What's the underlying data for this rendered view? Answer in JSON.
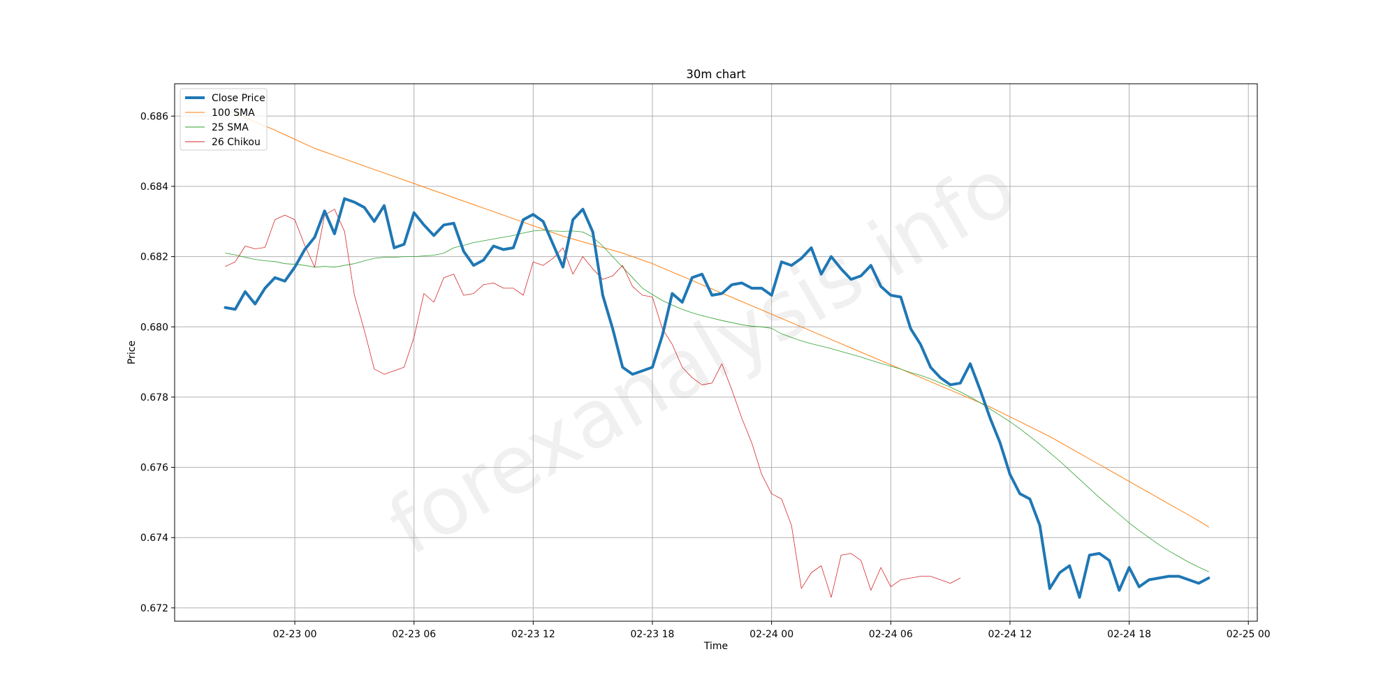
{
  "chart_data": {
    "type": "line",
    "title": "30m chart",
    "xlabel": "Time",
    "ylabel": "Price",
    "watermark": "forexanalysis.info",
    "grid": true,
    "legend_position": "top-left",
    "x_ticks": [
      "02-23 00",
      "02-23 06",
      "02-23 12",
      "02-23 18",
      "02-24 00",
      "02-24 06",
      "02-24 12",
      "02-24 18",
      "02-25 00"
    ],
    "y_ticks": [
      "0.672",
      "0.674",
      "0.676",
      "0.678",
      "0.680",
      "0.682",
      "0.684",
      "0.686"
    ],
    "xlim": [
      "2024-02-22 17:57",
      "2024-02-25 00:27"
    ],
    "ylim": [
      0.67162,
      0.68692
    ],
    "x_start": "2024-02-22 20:30",
    "x_step_minutes": 30,
    "series": [
      {
        "name": "Close Price",
        "color": "#1f77b4",
        "width": 4,
        "values": [
          0.68055,
          0.6805,
          0.681,
          0.68065,
          0.6811,
          0.6814,
          0.6813,
          0.6817,
          0.6822,
          0.68255,
          0.6833,
          0.68265,
          0.68365,
          0.68355,
          0.6834,
          0.683,
          0.68345,
          0.68225,
          0.68235,
          0.68325,
          0.6829,
          0.6826,
          0.6829,
          0.68295,
          0.68215,
          0.68175,
          0.6819,
          0.6823,
          0.6822,
          0.68225,
          0.68305,
          0.6832,
          0.683,
          0.68235,
          0.6817,
          0.68305,
          0.68335,
          0.6827,
          0.6809,
          0.67995,
          0.67885,
          0.67865,
          0.67875,
          0.67885,
          0.67975,
          0.68095,
          0.6807,
          0.6814,
          0.6815,
          0.6809,
          0.68095,
          0.6812,
          0.68125,
          0.6811,
          0.6811,
          0.6809,
          0.68185,
          0.68175,
          0.68195,
          0.68225,
          0.6815,
          0.682,
          0.68165,
          0.68135,
          0.68145,
          0.68175,
          0.68115,
          0.6809,
          0.68085,
          0.67995,
          0.6795,
          0.67885,
          0.67855,
          0.67835,
          0.6784,
          0.67895,
          0.6782,
          0.6774,
          0.6767,
          0.6758,
          0.67525,
          0.6751,
          0.67435,
          0.67255,
          0.673,
          0.6732,
          0.6723,
          0.6735,
          0.67355,
          0.67335,
          0.6725,
          0.67315,
          0.6726,
          0.6728,
          0.67285,
          0.6729,
          0.6729,
          0.6728,
          0.6727,
          0.67285
        ]
      },
      {
        "name": "100 SMA",
        "color": "#ff7f0e",
        "width": 1,
        "values": [
          0.6862,
          0.68608,
          0.68596,
          0.68584,
          0.68572,
          0.6856,
          0.68547,
          0.68534,
          0.68521,
          0.68508,
          0.68498,
          0.68488,
          0.68478,
          0.68468,
          0.68458,
          0.68448,
          0.68438,
          0.68428,
          0.68418,
          0.68408,
          0.68398,
          0.68388,
          0.68378,
          0.68368,
          0.68358,
          0.68348,
          0.68338,
          0.68328,
          0.68318,
          0.68308,
          0.68298,
          0.68288,
          0.68278,
          0.68268,
          0.68258,
          0.6825,
          0.68242,
          0.68234,
          0.68226,
          0.68218,
          0.6821,
          0.682,
          0.6819,
          0.6818,
          0.68168,
          0.68156,
          0.68144,
          0.68132,
          0.6812,
          0.68108,
          0.68096,
          0.68084,
          0.68072,
          0.6806,
          0.68048,
          0.68036,
          0.68024,
          0.68012,
          0.68,
          0.67988,
          0.67976,
          0.67964,
          0.67952,
          0.6794,
          0.67928,
          0.67916,
          0.67904,
          0.67892,
          0.6788,
          0.67868,
          0.67856,
          0.67844,
          0.67832,
          0.6782,
          0.67808,
          0.67796,
          0.67784,
          0.67772,
          0.67758,
          0.67744,
          0.6773,
          0.67716,
          0.67702,
          0.67688,
          0.67672,
          0.67656,
          0.6764,
          0.67624,
          0.67608,
          0.67592,
          0.67576,
          0.6756,
          0.67544,
          0.67528,
          0.67512,
          0.67496,
          0.6748,
          0.67464,
          0.67448,
          0.6743
        ]
      },
      {
        "name": "25 SMA",
        "color": "#2ca02c",
        "width": 0.8,
        "values": [
          0.6821,
          0.68205,
          0.68198,
          0.68192,
          0.68188,
          0.68186,
          0.6818,
          0.68178,
          0.68175,
          0.6817,
          0.68172,
          0.6817,
          0.68175,
          0.6818,
          0.68188,
          0.68195,
          0.68198,
          0.68198,
          0.682,
          0.682,
          0.68202,
          0.68204,
          0.6821,
          0.68225,
          0.68232,
          0.6824,
          0.68245,
          0.6825,
          0.68255,
          0.6826,
          0.68267,
          0.68273,
          0.68275,
          0.68273,
          0.68272,
          0.68273,
          0.6827,
          0.68255,
          0.6823,
          0.682,
          0.6817,
          0.6814,
          0.6811,
          0.68092,
          0.68075,
          0.68062,
          0.6805,
          0.6804,
          0.68032,
          0.68025,
          0.68018,
          0.68012,
          0.68006,
          0.68002,
          0.68,
          0.67996,
          0.6798,
          0.6797,
          0.6796,
          0.67952,
          0.67945,
          0.67938,
          0.6793,
          0.67922,
          0.67914,
          0.67905,
          0.67896,
          0.67888,
          0.6788,
          0.6787,
          0.67862,
          0.67852,
          0.6784,
          0.67828,
          0.67815,
          0.678,
          0.67784,
          0.67766,
          0.67748,
          0.6773,
          0.6771,
          0.67688,
          0.67666,
          0.67642,
          0.67618,
          0.67592,
          0.67566,
          0.6754,
          0.67514,
          0.6749,
          0.67466,
          0.67442,
          0.6742,
          0.674,
          0.6738,
          0.67362,
          0.67346,
          0.6733,
          0.67316,
          0.67303
        ]
      },
      {
        "name": "26 Chikou",
        "color": "#d62728",
        "width": 0.8,
        "values": [
          0.68172,
          0.68185,
          0.6823,
          0.68222,
          0.68226,
          0.68305,
          0.68318,
          0.68305,
          0.68232,
          0.6817,
          0.68318,
          0.68335,
          0.68272,
          0.6809,
          0.6799,
          0.6788,
          0.67865,
          0.67875,
          0.67885,
          0.6797,
          0.68095,
          0.6807,
          0.6814,
          0.6815,
          0.6809,
          0.68095,
          0.6812,
          0.68125,
          0.6811,
          0.6811,
          0.6809,
          0.68185,
          0.68175,
          0.68195,
          0.68225,
          0.6815,
          0.682,
          0.68165,
          0.68135,
          0.68145,
          0.68175,
          0.68115,
          0.6809,
          0.68085,
          0.67995,
          0.6795,
          0.67885,
          0.67855,
          0.67835,
          0.6784,
          0.67895,
          0.6782,
          0.6774,
          0.6767,
          0.6758,
          0.67525,
          0.6751,
          0.67435,
          0.67255,
          0.673,
          0.6732,
          0.6723,
          0.6735,
          0.67355,
          0.67335,
          0.6725,
          0.67315,
          0.6726,
          0.6728,
          0.67285,
          0.6729,
          0.6729,
          0.6728,
          0.6727,
          0.67285
        ]
      }
    ]
  }
}
